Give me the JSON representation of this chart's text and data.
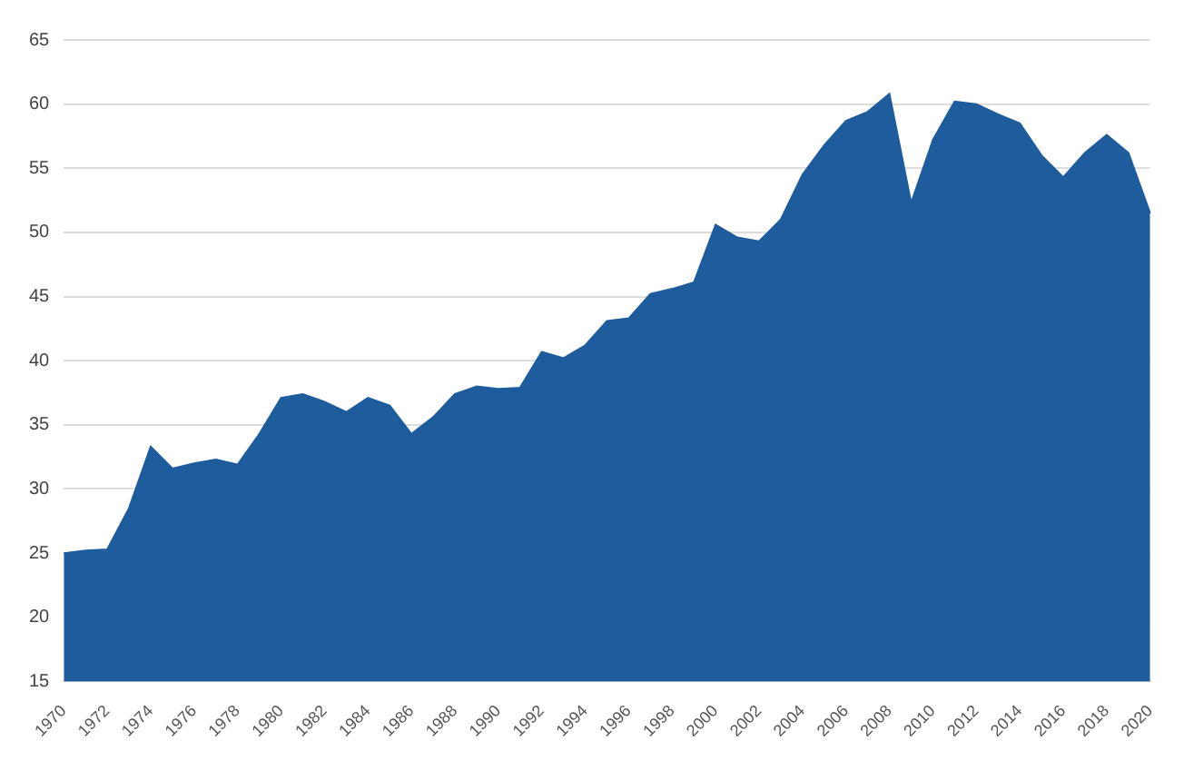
{
  "chart_data": {
    "type": "area",
    "categories": [
      "1970",
      null,
      "1972",
      null,
      "1974",
      null,
      "1976",
      null,
      "1978",
      null,
      "1980",
      null,
      "1982",
      null,
      "1984",
      null,
      "1986",
      null,
      "1988",
      null,
      "1990",
      null,
      "1992",
      null,
      "1994",
      null,
      "1996",
      null,
      "1998",
      null,
      "2000",
      null,
      "2002",
      null,
      "2004",
      null,
      "2006",
      null,
      "2008",
      null,
      "2010",
      null,
      "2012",
      null,
      "2014",
      null,
      "2016",
      null,
      "2018",
      null,
      "2020"
    ],
    "series": [
      {
        "color": "#1f5c9e",
        "values": [
          25,
          25.2,
          25.3,
          28.5,
          33.3,
          31.6,
          32,
          32.3,
          31.9,
          34.3,
          37.1,
          37.4,
          36.8,
          36,
          37.1,
          36.5,
          34.3,
          35.6,
          37.4,
          38,
          37.8,
          37.9,
          40.7,
          40.2,
          41.2,
          43.1,
          43.3,
          45.2,
          45.6,
          46.1,
          50.6,
          49.6,
          49.3,
          51,
          54.5,
          56.8,
          58.7,
          59.4,
          60.8,
          52.3,
          57.2,
          60.2,
          60,
          59.2,
          58.5,
          56,
          54.3,
          56.2,
          57.6,
          56.2,
          51.5
        ]
      }
    ],
    "ylim": [
      15,
      65
    ],
    "yticks": [
      15,
      20,
      25,
      30,
      35,
      40,
      45,
      50,
      55,
      60,
      65
    ],
    "grid": "y"
  }
}
